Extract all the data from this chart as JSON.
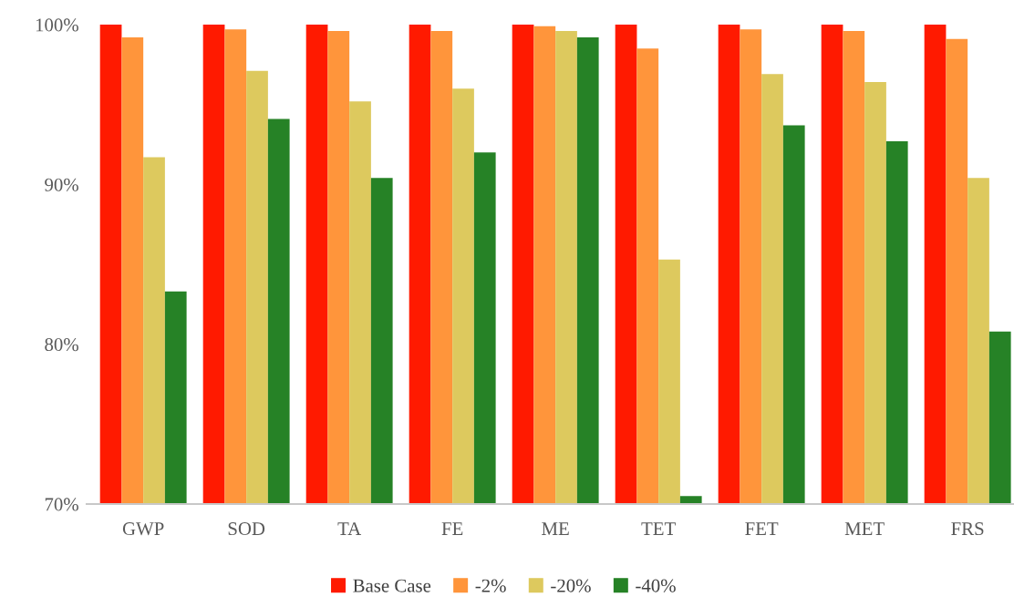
{
  "chart_data": {
    "type": "bar",
    "categories": [
      "GWP",
      "SOD",
      "TA",
      "FE",
      "ME",
      "TET",
      "FET",
      "MET",
      "FRS"
    ],
    "series": [
      {
        "name": "Base Case",
        "color": "#ff1a00",
        "values": [
          100,
          100,
          100,
          100,
          100,
          100,
          100,
          100,
          100
        ]
      },
      {
        "name": "-2%",
        "color": "#ff953b",
        "values": [
          99.2,
          99.7,
          99.6,
          99.6,
          99.9,
          98.5,
          99.7,
          99.6,
          99.1
        ]
      },
      {
        "name": "-20%",
        "color": "#ddc95e",
        "values": [
          91.7,
          97.1,
          95.2,
          96.0,
          99.6,
          85.3,
          96.9,
          96.4,
          90.4
        ]
      },
      {
        "name": "-40%",
        "color": "#268226",
        "values": [
          83.3,
          94.1,
          90.4,
          92.0,
          99.2,
          70.5,
          93.7,
          92.7,
          80.8
        ]
      }
    ],
    "ylim": [
      70,
      100
    ],
    "yticks": [
      {
        "value": 70,
        "label": "70%"
      },
      {
        "value": 80,
        "label": "80%"
      },
      {
        "value": 90,
        "label": "90%"
      },
      {
        "value": 100,
        "label": "100%"
      }
    ],
    "grid": false,
    "legend": "bottom"
  }
}
